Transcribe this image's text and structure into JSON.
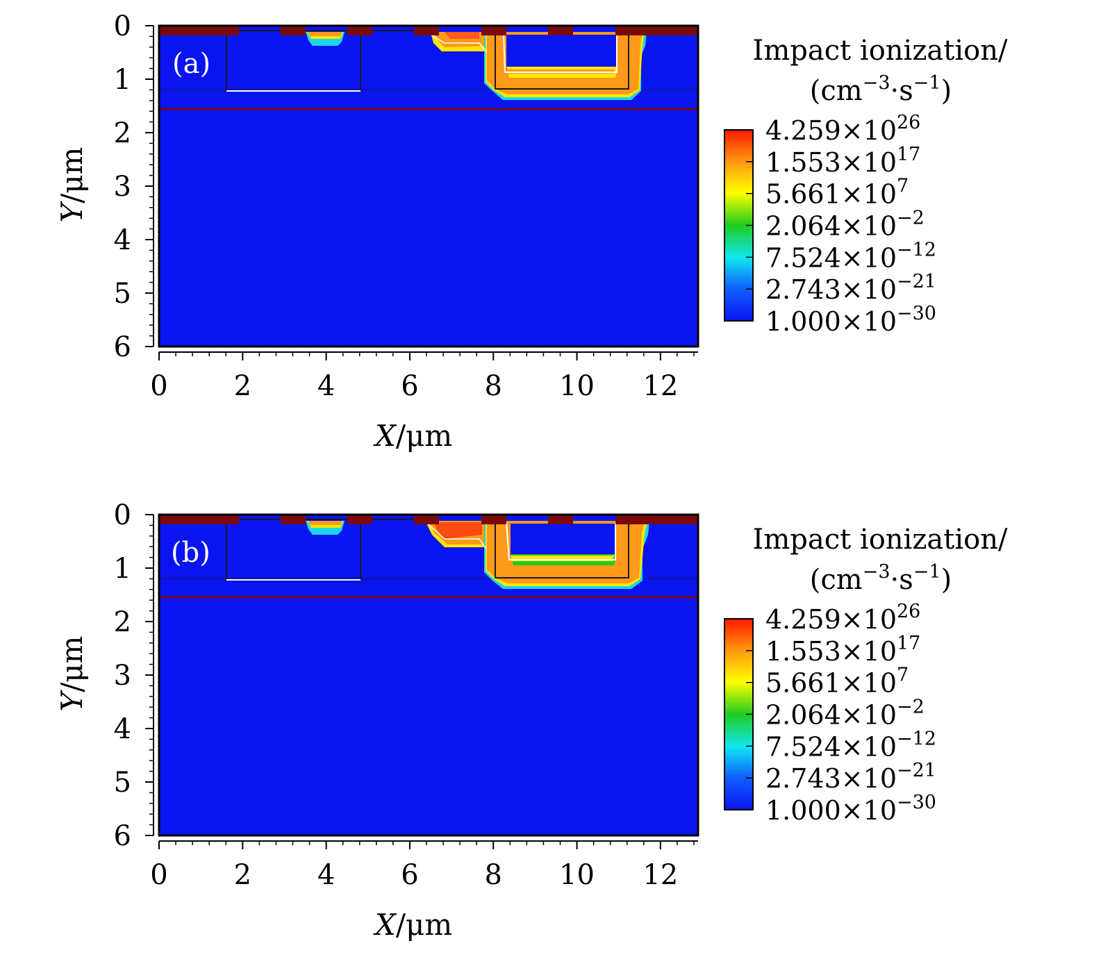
{
  "chart_data": [
    {
      "type": "heatmap",
      "panel_label": "(a)",
      "title": "",
      "xlabel_var": "X",
      "xlabel_unit": "/μm",
      "ylabel_var": "Y",
      "ylabel_unit": "/μm",
      "xlim": [
        0,
        12.9
      ],
      "ylim": [
        0,
        6
      ],
      "xticks": [
        "0",
        "2",
        "4",
        "6",
        "8",
        "10",
        "12"
      ],
      "xtick_values": [
        0,
        2,
        4,
        6,
        8,
        10,
        12
      ],
      "yticks": [
        "0",
        "1",
        "2",
        "3",
        "4",
        "5",
        "6"
      ],
      "ytick_values": [
        0,
        1,
        2,
        3,
        4,
        5,
        6
      ],
      "colorbar": {
        "title_line1": "Impact ionization/",
        "title_line2": "(cm",
        "title_exp1": "−3",
        "title_mid": "·s",
        "title_exp2": "−1",
        "title_end": ")",
        "labels": [
          {
            "mantissa": "4.259",
            "base": "×10",
            "exp": "26"
          },
          {
            "mantissa": "1.553",
            "base": "×10",
            "exp": "17"
          },
          {
            "mantissa": "5.661",
            "base": "×10",
            "exp": "7"
          },
          {
            "mantissa": "2.064",
            "base": "×10",
            "exp": "−2"
          },
          {
            "mantissa": "7.524",
            "base": "×10",
            "exp": "−12"
          },
          {
            "mantissa": "2.743",
            "base": "×10",
            "exp": "−21"
          },
          {
            "mantissa": "1.000",
            "base": "×10",
            "exp": "−30"
          }
        ]
      }
    },
    {
      "type": "heatmap",
      "panel_label": "(b)",
      "title": "",
      "xlabel_var": "X",
      "xlabel_unit": "/μm",
      "ylabel_var": "Y",
      "ylabel_unit": "/μm",
      "xlim": [
        0,
        12.9
      ],
      "ylim": [
        0,
        6
      ],
      "xticks": [
        "0",
        "2",
        "4",
        "6",
        "8",
        "10",
        "12"
      ],
      "xtick_values": [
        0,
        2,
        4,
        6,
        8,
        10,
        12
      ],
      "yticks": [
        "0",
        "1",
        "2",
        "3",
        "4",
        "5",
        "6"
      ],
      "ytick_values": [
        0,
        1,
        2,
        3,
        4,
        5,
        6
      ],
      "colorbar": {
        "title_line1": "Impact ionization/",
        "title_line2": "(cm",
        "title_exp1": "−3",
        "title_mid": "·s",
        "title_exp2": "−1",
        "title_end": ")",
        "labels": [
          {
            "mantissa": "4.259",
            "base": "×10",
            "exp": "26"
          },
          {
            "mantissa": "1.553",
            "base": "×10",
            "exp": "17"
          },
          {
            "mantissa": "5.661",
            "base": "×10",
            "exp": "7"
          },
          {
            "mantissa": "2.064",
            "base": "×10",
            "exp": "−2"
          },
          {
            "mantissa": "7.524",
            "base": "×10",
            "exp": "−12"
          },
          {
            "mantissa": "2.743",
            "base": "×10",
            "exp": "−21"
          },
          {
            "mantissa": "1.000",
            "base": "×10",
            "exp": "−30"
          }
        ]
      }
    }
  ],
  "colors": {
    "background_field": "#0a14f0",
    "electrode": "#7a0a0a",
    "high": "#ff2a00",
    "orange": "#ff9a1a",
    "yellow": "#ffe600",
    "green": "#22cc22",
    "cyan": "#1ad6e6",
    "light_blue": "#2a8cff"
  }
}
